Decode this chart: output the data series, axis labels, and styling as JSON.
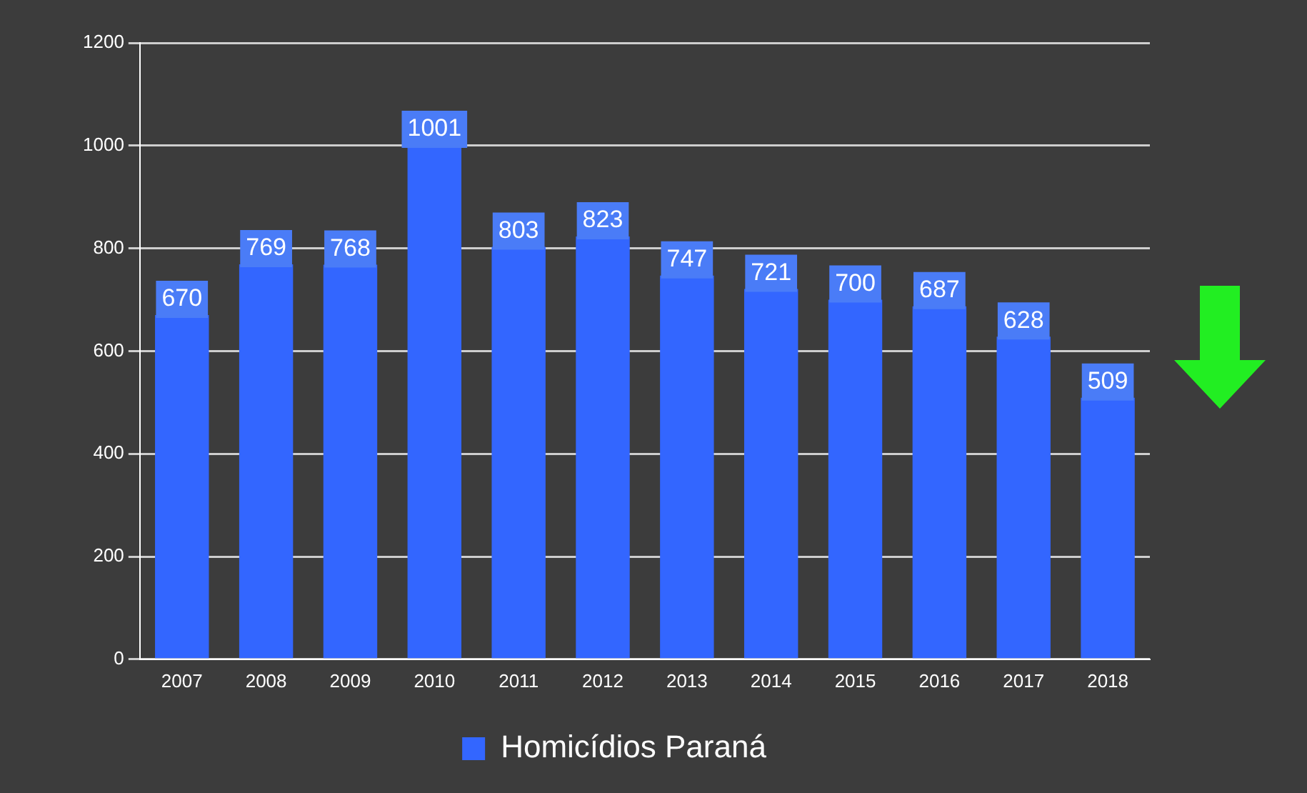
{
  "chart_data": {
    "type": "bar",
    "categories": [
      "2007",
      "2008",
      "2009",
      "2010",
      "2011",
      "2012",
      "2013",
      "2014",
      "2015",
      "2016",
      "2017",
      "2018"
    ],
    "series": [
      {
        "name": "Homicídios Paraná",
        "color": "#3366ff",
        "values": [
          670,
          769,
          768,
          1001,
          803,
          823,
          747,
          721,
          700,
          687,
          628,
          509
        ]
      }
    ],
    "ylim": [
      0,
      1200
    ],
    "yticks": [
      0,
      200,
      400,
      600,
      800,
      1000,
      1200
    ],
    "grid": "y",
    "legend": "bottom",
    "data_labels": true
  }
}
